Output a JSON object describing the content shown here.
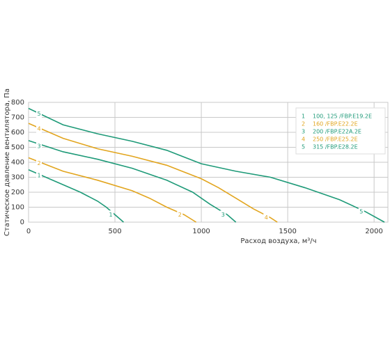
{
  "chart_data": {
    "type": "line",
    "xlabel": "Расход воздуха, м³/ч",
    "ylabel": "Статическое давление вентилятора, Па",
    "xlim": [
      0,
      2080
    ],
    "ylim": [
      0,
      800
    ],
    "xticks": [
      0,
      500,
      1000,
      1500,
      2000
    ],
    "yticks": [
      0,
      100,
      200,
      300,
      400,
      500,
      600,
      700,
      800
    ],
    "grid": true,
    "legend": "upper right",
    "series": [
      {
        "label": "1",
        "name": "100, 125 /FBP.E19.2E",
        "color": "#1e9a78",
        "x": [
          0,
          100,
          200,
          300,
          400,
          450,
          500,
          550
        ],
        "values": [
          350,
          300,
          250,
          200,
          140,
          100,
          50,
          0
        ]
      },
      {
        "label": "2",
        "name": "160 /FBP.E22.2E",
        "color": "#e2a51e",
        "x": [
          0,
          200,
          400,
          600,
          700,
          800,
          900,
          970
        ],
        "values": [
          430,
          340,
          280,
          210,
          160,
          100,
          50,
          0
        ]
      },
      {
        "label": "3",
        "name": "200 /FBP.E22A.2E",
        "color": "#1e9a78",
        "x": [
          0,
          200,
          400,
          600,
          800,
          950,
          1050,
          1150,
          1200
        ],
        "values": [
          545,
          470,
          420,
          360,
          280,
          200,
          120,
          50,
          0
        ]
      },
      {
        "label": "4",
        "name": "250 /FBP.E25.2E",
        "color": "#e2a51e",
        "x": [
          0,
          200,
          400,
          600,
          800,
          1000,
          1100,
          1200,
          1300,
          1400,
          1440
        ],
        "values": [
          660,
          560,
          490,
          440,
          380,
          290,
          230,
          160,
          90,
          30,
          0
        ]
      },
      {
        "label": "5",
        "name": "315 /FBP.E28.2E",
        "color": "#1e9a78",
        "x": [
          0,
          200,
          400,
          600,
          800,
          1000,
          1200,
          1400,
          1600,
          1800,
          1950,
          2060
        ],
        "values": [
          760,
          650,
          590,
          540,
          480,
          390,
          340,
          300,
          230,
          150,
          70,
          0
        ]
      }
    ]
  }
}
